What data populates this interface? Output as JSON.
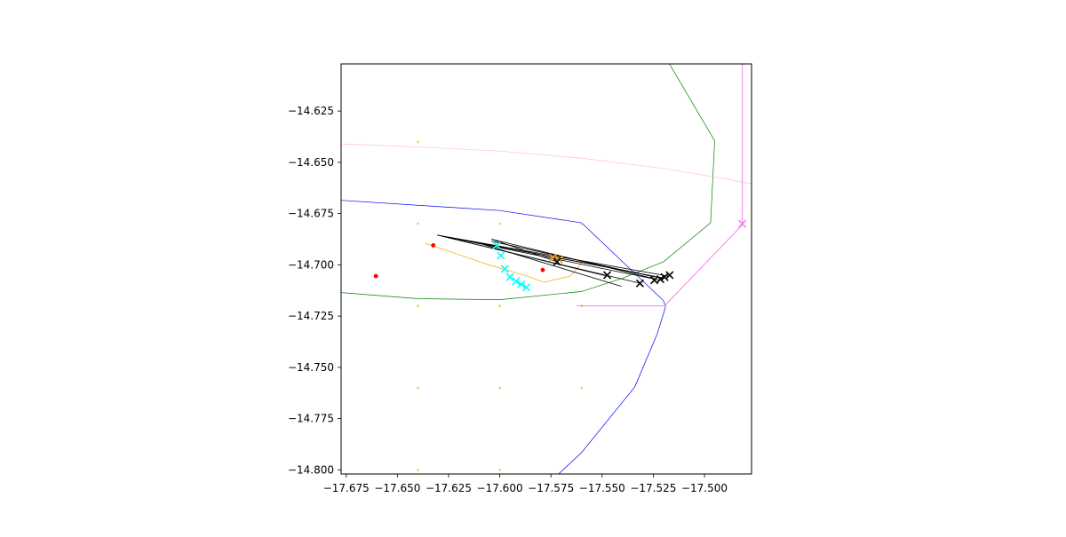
{
  "chart_data": {
    "type": "scatter",
    "title": "",
    "xlabel": "",
    "ylabel": "",
    "xlim": [
      -17.6775,
      -17.477
    ],
    "ylim": [
      -14.802,
      -14.602
    ],
    "grid": false,
    "legend": null,
    "x_ticks": [
      -17.675,
      -17.65,
      -17.625,
      -17.6,
      -17.575,
      -17.55,
      -17.525,
      -17.5
    ],
    "x_tick_labels": [
      "−17.675",
      "−17.650",
      "−17.625",
      "−17.600",
      "−17.575",
      "−17.550",
      "−17.525",
      "−17.500"
    ],
    "y_ticks": [
      -14.625,
      -14.65,
      -14.675,
      -14.7,
      -14.725,
      -14.75,
      -14.775,
      -14.8
    ],
    "y_tick_labels": [
      "−14.625",
      "−14.650",
      "−14.675",
      "−14.700",
      "−14.725",
      "−14.750",
      "−14.775",
      "−14.800"
    ],
    "polylines": [
      {
        "color": "#0000ff",
        "width": 0.7,
        "points": [
          [
            -17.678,
            -14.6685
          ],
          [
            -17.6,
            -14.6735
          ],
          [
            -17.56,
            -14.6795
          ],
          [
            -17.52,
            -14.7175
          ],
          [
            -17.519,
            -14.7205
          ],
          [
            -17.523,
            -14.7335
          ],
          [
            -17.534,
            -14.7595
          ],
          [
            -17.56,
            -14.7915
          ],
          [
            -17.575,
            -14.8055
          ]
        ]
      },
      {
        "color": "#008000",
        "width": 0.7,
        "points": [
          [
            -17.678,
            -14.7135
          ],
          [
            -17.64,
            -14.7165
          ],
          [
            -17.6,
            -14.717
          ],
          [
            -17.56,
            -14.713
          ],
          [
            -17.54,
            -14.7065
          ],
          [
            -17.52,
            -14.6985
          ],
          [
            -17.497,
            -14.6795
          ],
          [
            -17.495,
            -14.6395
          ],
          [
            -17.518,
            -14.6005
          ]
        ]
      },
      {
        "color": "#ffa500",
        "width": 0.7,
        "points": [
          [
            -17.6365,
            -14.6895
          ],
          [
            -17.6215,
            -14.6945
          ],
          [
            -17.6055,
            -14.7
          ],
          [
            -17.5865,
            -14.7055
          ],
          [
            -17.5785,
            -14.7085
          ],
          [
            -17.5655,
            -14.7055
          ],
          [
            -17.5595,
            -14.6985
          ],
          [
            -17.5675,
            -14.6965
          ]
        ]
      },
      {
        "color": "#ffc0cb",
        "width": 0.7,
        "points": [
          [
            -17.678,
            -14.641
          ],
          [
            -17.64,
            -14.6425
          ],
          [
            -17.6,
            -14.6445
          ],
          [
            -17.56,
            -14.648
          ],
          [
            -17.52,
            -14.653
          ],
          [
            -17.49,
            -14.658
          ],
          [
            -17.477,
            -14.6605
          ]
        ]
      },
      {
        "color": "#ee82ee",
        "width": 1.0,
        "points": [
          [
            -17.5625,
            -14.72
          ],
          [
            -17.5195,
            -14.72
          ],
          [
            -17.4815,
            -14.6805
          ],
          [
            -17.4815,
            -14.6
          ]
        ]
      }
    ],
    "tracks": {
      "color": "#000000",
      "width": 0.8,
      "segments": [
        [
          [
            -17.6305,
            -14.6855
          ],
          [
            -17.5175,
            -14.7055
          ]
        ],
        [
          [
            -17.6305,
            -14.6855
          ],
          [
            -17.5195,
            -14.7065
          ]
        ],
        [
          [
            -17.6305,
            -14.6855
          ],
          [
            -17.5215,
            -14.7075
          ]
        ],
        [
          [
            -17.6285,
            -14.686
          ],
          [
            -17.5315,
            -14.709
          ]
        ],
        [
          [
            -17.62,
            -14.688
          ],
          [
            -17.5475,
            -14.7055
          ]
        ],
        [
          [
            -17.61,
            -14.6895
          ],
          [
            -17.5405,
            -14.7105
          ]
        ],
        [
          [
            -17.604,
            -14.6875
          ],
          [
            -17.572,
            -14.6985
          ]
        ],
        [
          [
            -17.604,
            -14.6875
          ],
          [
            -17.5235,
            -14.707
          ]
        ],
        [
          [
            -17.625,
            -14.6865
          ],
          [
            -17.532,
            -14.704
          ]
        ],
        [
          [
            -17.604,
            -14.6885
          ],
          [
            -17.524,
            -14.706
          ]
        ]
      ]
    },
    "series": [
      {
        "marker": "dot",
        "color": "#ffa500",
        "size": 1.4,
        "opacity": 0.6,
        "points": [
          [
            -17.64,
            -14.64
          ],
          [
            -17.64,
            -14.68
          ],
          [
            -17.6,
            -14.68
          ],
          [
            -17.56,
            -14.68
          ],
          [
            -17.64,
            -14.72
          ],
          [
            -17.6,
            -14.72
          ],
          [
            -17.56,
            -14.72
          ],
          [
            -17.64,
            -14.76
          ],
          [
            -17.6,
            -14.76
          ],
          [
            -17.56,
            -14.76
          ],
          [
            -17.64,
            -14.8
          ],
          [
            -17.6,
            -14.8
          ]
        ]
      },
      {
        "marker": "dot",
        "color": "#ff0000",
        "size": 2.4,
        "opacity": 1,
        "points": [
          [
            -17.6605,
            -14.7055
          ],
          [
            -17.6325,
            -14.6905
          ],
          [
            -17.579,
            -14.7025
          ]
        ]
      },
      {
        "marker": "x",
        "color": "#00ffff",
        "size": 4,
        "opacity": 1,
        "points": [
          [
            -17.6015,
            -14.6905
          ],
          [
            -17.5995,
            -14.6955
          ],
          [
            -17.5975,
            -14.702
          ],
          [
            -17.595,
            -14.706
          ],
          [
            -17.592,
            -14.708
          ],
          [
            -17.5895,
            -14.7095
          ],
          [
            -17.587,
            -14.711
          ]
        ]
      },
      {
        "marker": "x",
        "color": "#ffa500",
        "size": 4,
        "opacity": 1,
        "points": [
          [
            -17.574,
            -14.6965
          ],
          [
            -17.571,
            -14.6975
          ]
        ]
      },
      {
        "marker": "x",
        "color": "#000000",
        "size": 4,
        "opacity": 1,
        "points": [
          [
            -17.572,
            -14.6985
          ],
          [
            -17.5475,
            -14.705
          ],
          [
            -17.5315,
            -14.709
          ],
          [
            -17.5245,
            -14.7075
          ],
          [
            -17.5215,
            -14.707
          ],
          [
            -17.5195,
            -14.706
          ],
          [
            -17.517,
            -14.705
          ]
        ]
      },
      {
        "marker": "x",
        "color": "#ee82ee",
        "size": 4,
        "opacity": 1,
        "points": [
          [
            -17.4815,
            -14.68
          ]
        ]
      }
    ]
  }
}
